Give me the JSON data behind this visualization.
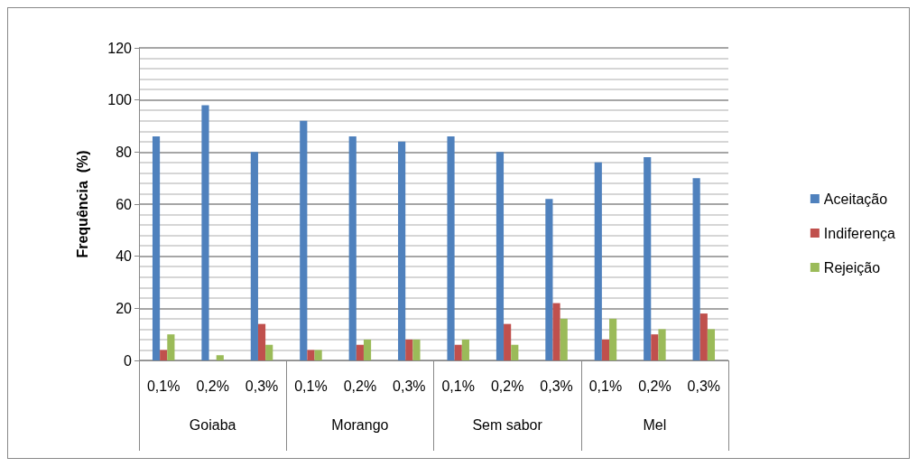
{
  "chart_data": {
    "type": "bar",
    "ylabel": "Frequência  (%)",
    "categories": [
      "0,1%",
      "0,2%",
      "0,3%",
      "0,1%",
      "0,2%",
      "0,3%",
      "0,1%",
      "0,2%",
      "0,3%",
      "0,1%",
      "0,2%",
      "0,3%"
    ],
    "annotations": [
      "Goiaba",
      "Morango",
      "Sem sabor",
      "Mel"
    ],
    "series": [
      {
        "name": "Aceitação",
        "color": "#4f81bd",
        "values": [
          86,
          98,
          80,
          92,
          86,
          84,
          86,
          80,
          62,
          76,
          78,
          70
        ]
      },
      {
        "name": "Indiferença",
        "color": "#c0504d",
        "values": [
          4,
          0,
          14,
          4,
          6,
          8,
          6,
          14,
          22,
          8,
          10,
          18
        ]
      },
      {
        "name": "Rejeição",
        "color": "#9bbb59",
        "values": [
          10,
          2,
          6,
          4,
          8,
          8,
          8,
          6,
          16,
          16,
          12,
          12
        ]
      }
    ],
    "ylim": [
      0,
      120
    ],
    "yticks": [
      0,
      20,
      40,
      60,
      80,
      100,
      120
    ],
    "grid": true,
    "legend": "right"
  }
}
